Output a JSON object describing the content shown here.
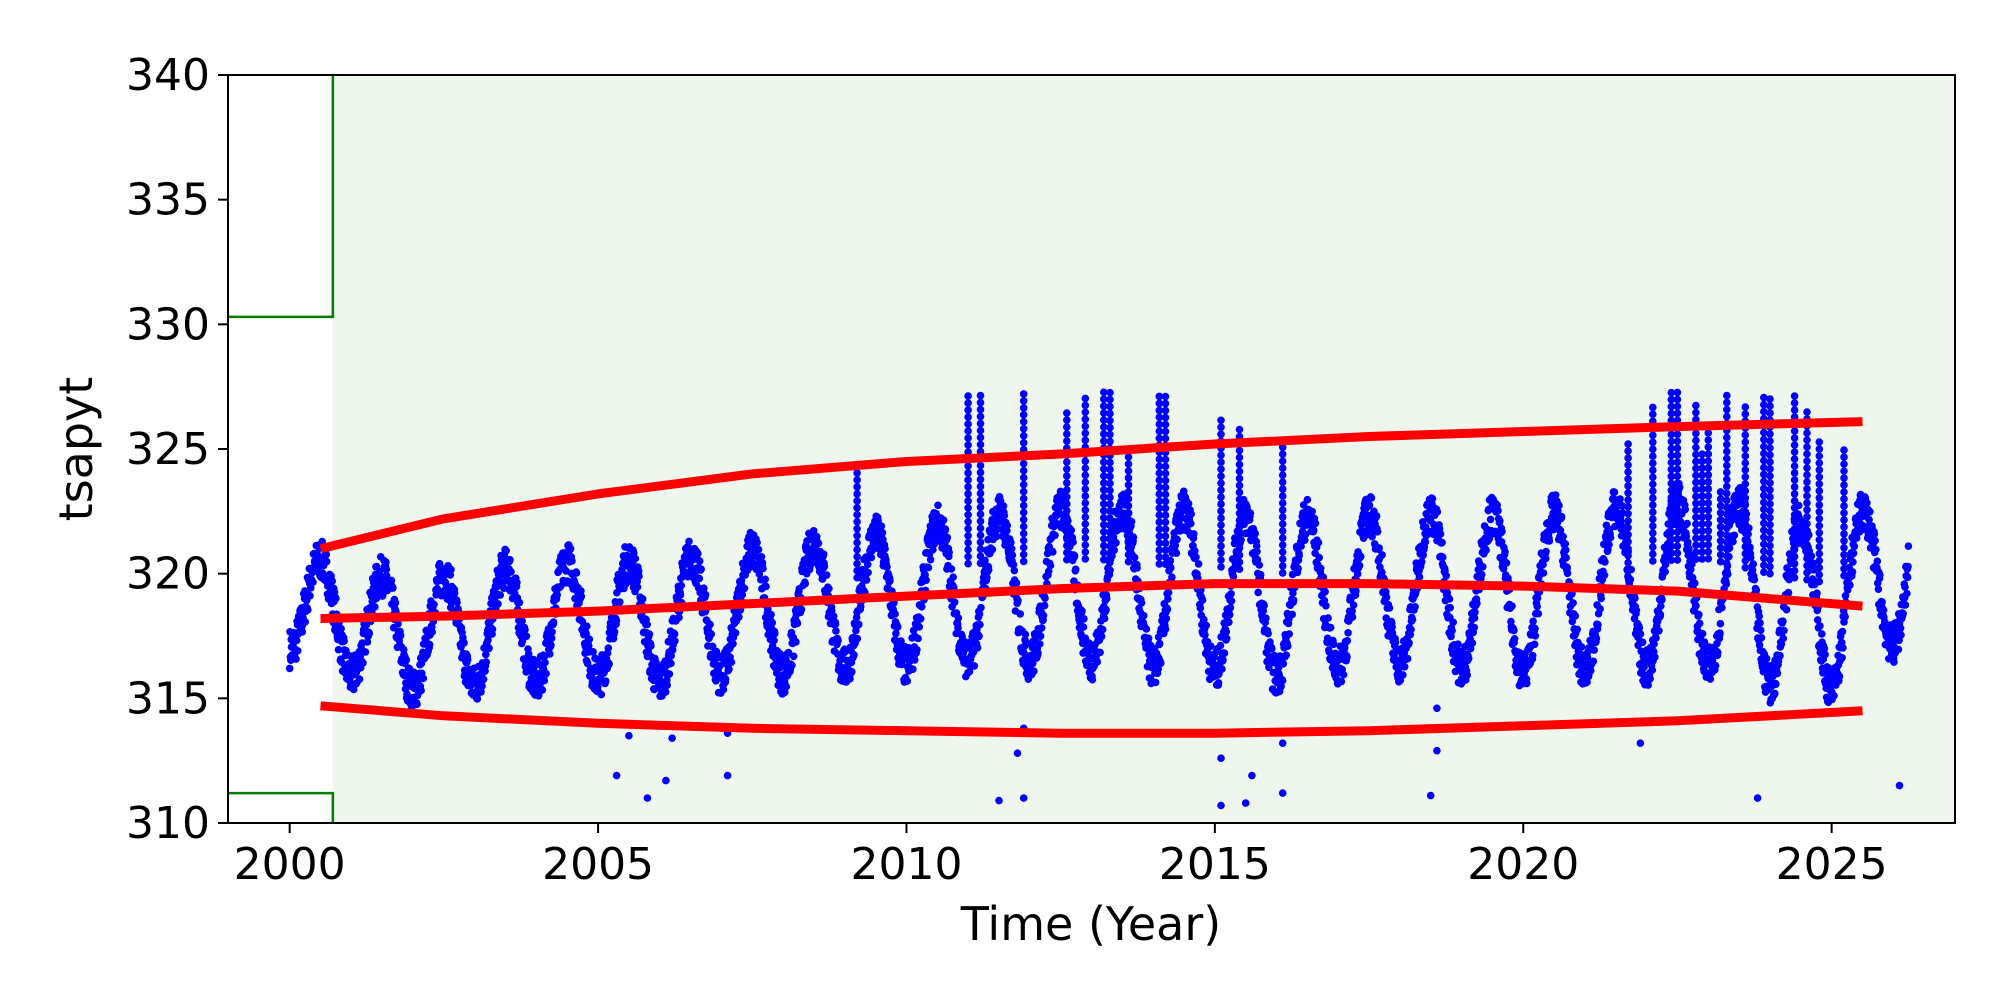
{
  "chart_data": {
    "type": "scatter",
    "title": "",
    "xlabel": "Time (Year)",
    "ylabel": "tsapyt",
    "xlim": [
      1999.0,
      2027.0
    ],
    "ylim": [
      310,
      340
    ],
    "x_ticks": [
      "2000",
      "2005",
      "2010",
      "2015",
      "2020",
      "2025"
    ],
    "y_ticks": [
      "310",
      "315",
      "320",
      "325",
      "330",
      "335",
      "340"
    ],
    "grid": false,
    "legend": "none",
    "colors": {
      "points": "#0000ff",
      "bands": "#ff0000",
      "valid_region_fill": "#eef6ee",
      "valid_region_edge": "#008000"
    },
    "valid_region": {
      "x_start": 2000.7,
      "x_end": 2027.0,
      "y_min": 311.2,
      "y_max": 330.3
    },
    "seasonal_model": {
      "description_values": "observed series oscillates annually",
      "mean_by_year": [
        [
          2000.0,
          319.0
        ],
        [
          2001.0,
          318.0
        ],
        [
          2002.0,
          317.5
        ],
        [
          2003.0,
          317.8
        ],
        [
          2004.0,
          318.0
        ],
        [
          2005.0,
          318.2
        ],
        [
          2006.0,
          318.0
        ],
        [
          2007.0,
          318.4
        ],
        [
          2008.0,
          318.5
        ],
        [
          2009.0,
          318.8
        ],
        [
          2010.0,
          319.0
        ],
        [
          2011.0,
          319.4
        ],
        [
          2012.0,
          319.5
        ],
        [
          2013.0,
          319.6
        ],
        [
          2014.0,
          319.4
        ],
        [
          2015.0,
          319.3
        ],
        [
          2016.0,
          319.0
        ],
        [
          2017.0,
          319.3
        ],
        [
          2018.0,
          319.4
        ],
        [
          2019.0,
          319.3
        ],
        [
          2020.0,
          319.2
        ],
        [
          2021.0,
          319.3
        ],
        [
          2022.0,
          319.5
        ],
        [
          2023.0,
          319.6
        ],
        [
          2024.0,
          319.0
        ],
        [
          2025.0,
          318.6
        ],
        [
          2026.2,
          320.5
        ]
      ],
      "amplitude_by_year": [
        [
          2000.0,
          2.0
        ],
        [
          2003.0,
          2.3
        ],
        [
          2006.0,
          2.4
        ],
        [
          2009.0,
          2.6
        ],
        [
          2012.0,
          3.0
        ],
        [
          2015.0,
          3.2
        ],
        [
          2018.0,
          3.0
        ],
        [
          2021.0,
          3.2
        ],
        [
          2024.0,
          3.4
        ],
        [
          2026.2,
          3.0
        ]
      ]
    },
    "outliers": [
      [
        2005.3,
        311.9
      ],
      [
        2005.5,
        313.5
      ],
      [
        2005.8,
        311.0
      ],
      [
        2006.1,
        311.7
      ],
      [
        2006.2,
        313.4
      ],
      [
        2007.1,
        311.9
      ],
      [
        2007.1,
        313.6
      ],
      [
        2011.5,
        310.9
      ],
      [
        2011.8,
        312.8
      ],
      [
        2011.9,
        311.0
      ],
      [
        2011.9,
        313.8
      ],
      [
        2015.1,
        310.7
      ],
      [
        2015.1,
        312.6
      ],
      [
        2015.5,
        310.8
      ],
      [
        2015.6,
        311.9
      ],
      [
        2016.1,
        311.2
      ],
      [
        2016.1,
        313.2
      ],
      [
        2018.5,
        311.1
      ],
      [
        2018.6,
        312.9
      ],
      [
        2018.6,
        314.6
      ],
      [
        2021.9,
        313.2
      ],
      [
        2023.8,
        311.0
      ],
      [
        2026.1,
        311.5
      ]
    ],
    "spikes": [
      [
        2011.0,
        327.3
      ],
      [
        2011.2,
        327.3
      ],
      [
        2011.9,
        327.3
      ],
      [
        2012.6,
        326.5
      ],
      [
        2012.9,
        327.3
      ],
      [
        2013.2,
        327.3
      ],
      [
        2013.3,
        327.3
      ],
      [
        2014.1,
        327.3
      ],
      [
        2014.2,
        327.3
      ],
      [
        2015.1,
        326.3
      ],
      [
        2015.4,
        325.8
      ],
      [
        2016.1,
        325.6
      ],
      [
        2022.4,
        327.3
      ],
      [
        2022.5,
        327.3
      ],
      [
        2022.8,
        326.9
      ],
      [
        2023.0,
        325.7
      ],
      [
        2023.3,
        327.3
      ],
      [
        2023.6,
        326.9
      ],
      [
        2023.9,
        327.1
      ],
      [
        2024.0,
        327.0
      ],
      [
        2024.4,
        327.3
      ],
      [
        2024.6,
        326.7
      ],
      [
        2022.1,
        326.8
      ],
      [
        2009.2,
        324.4
      ],
      [
        2013.6,
        324.8
      ],
      [
        2021.7,
        325.4
      ],
      [
        2025.2,
        325.0
      ],
      [
        2022.9,
        325.0
      ],
      [
        2023.2,
        323.5
      ],
      [
        2024.8,
        325.3
      ]
    ],
    "series": [
      {
        "x": [
          2000.5,
          2002.5,
          2005.0,
          2007.5,
          2010.0,
          2012.5,
          2015.0,
          2017.5,
          2020.0,
          2022.5,
          2025.5
        ],
        "y": [
          321.0,
          322.2,
          323.2,
          324.0,
          324.5,
          324.8,
          325.2,
          325.5,
          325.7,
          325.9,
          326.1
        ]
      },
      {
        "x": [
          2000.5,
          2002.5,
          2005.0,
          2007.5,
          2010.0,
          2012.5,
          2015.0,
          2017.5,
          2020.0,
          2022.5,
          2025.5
        ],
        "y": [
          318.2,
          318.3,
          318.5,
          318.8,
          319.1,
          319.4,
          319.6,
          319.6,
          319.5,
          319.3,
          318.7
        ]
      },
      {
        "x": [
          2000.5,
          2002.5,
          2005.0,
          2007.5,
          2010.0,
          2012.5,
          2015.0,
          2017.5,
          2020.0,
          2022.5,
          2025.5
        ],
        "y": [
          314.7,
          314.3,
          314.0,
          313.8,
          313.7,
          313.6,
          313.6,
          313.7,
          313.9,
          314.1,
          314.5
        ]
      }
    ]
  }
}
